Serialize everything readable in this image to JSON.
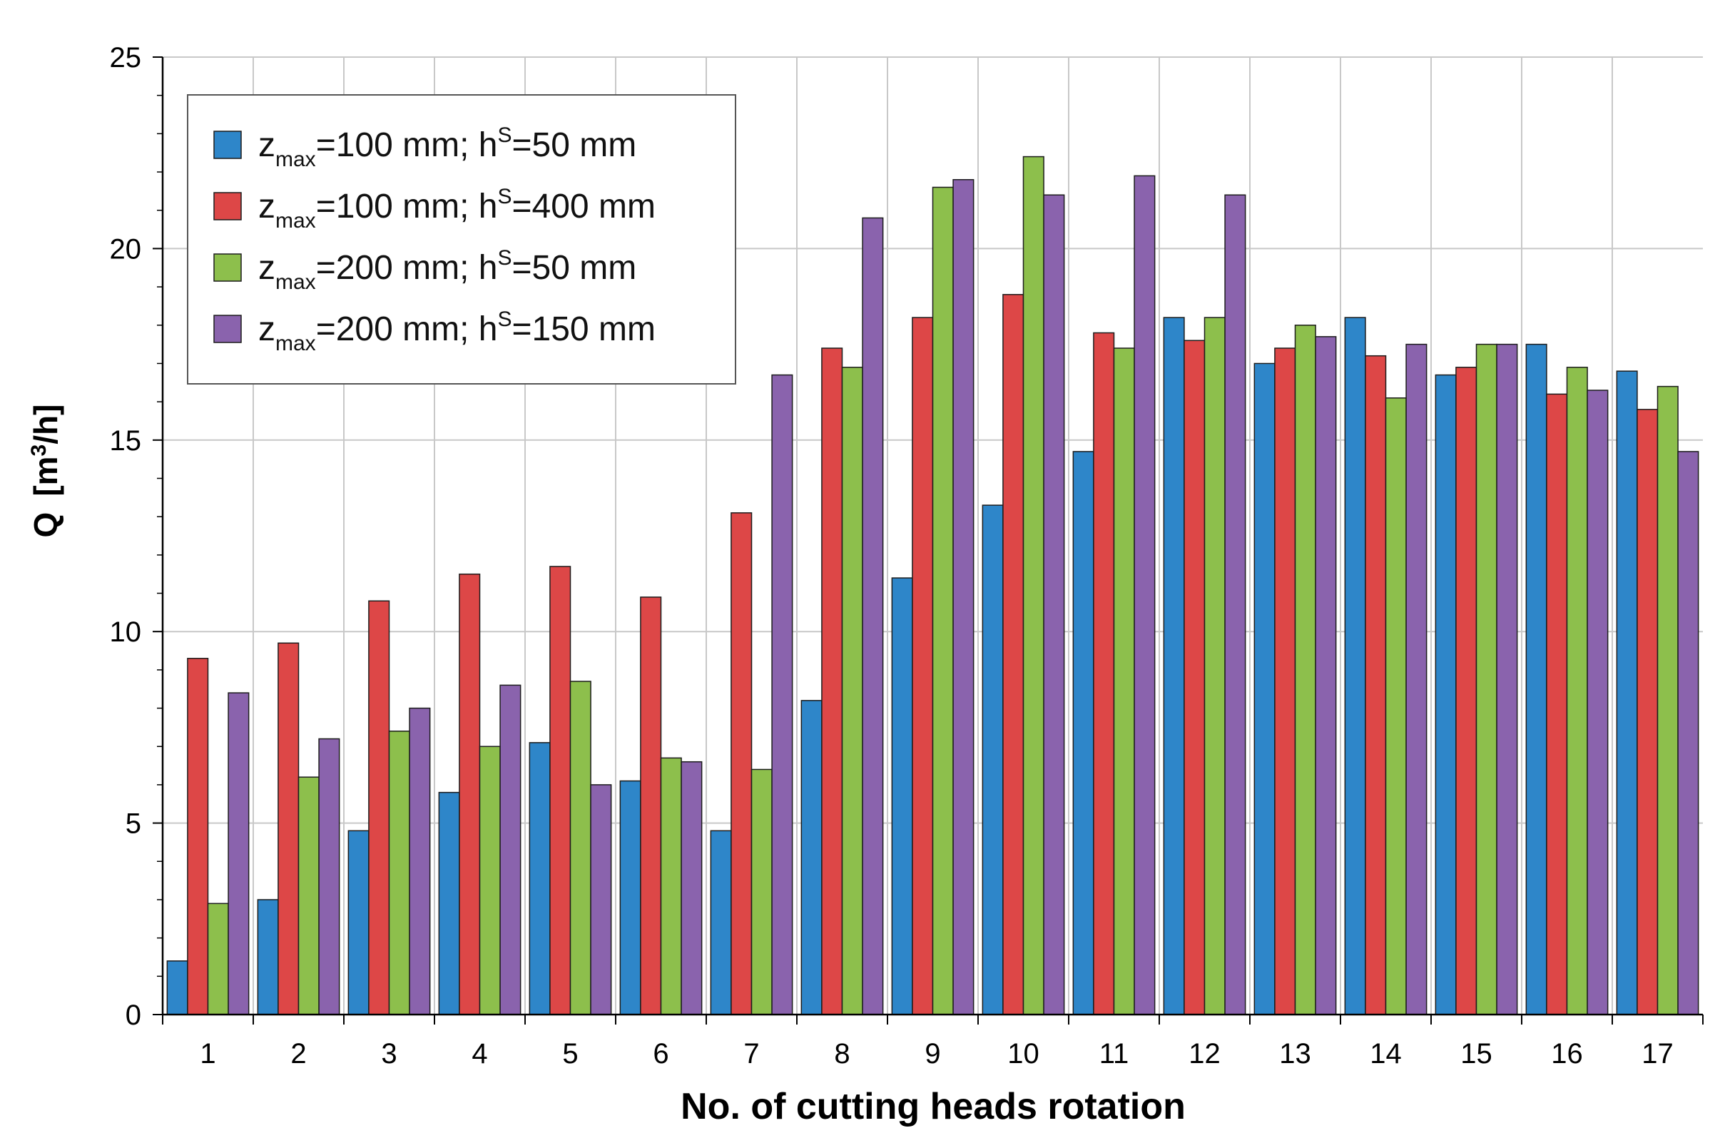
{
  "chart_data": {
    "type": "bar",
    "title": "",
    "xlabel": "No. of cutting heads rotation",
    "ylabel": "Q  [m³/h]",
    "ylabel_parts": {
      "symbol": "Q",
      "open": "[m",
      "sup": "3",
      "close": "/h]"
    },
    "ylim": [
      0,
      25
    ],
    "yticks": [
      "0",
      "5",
      "10",
      "15",
      "20",
      "25"
    ],
    "grid": true,
    "legend_position": "top-left",
    "categories": [
      "1",
      "2",
      "3",
      "4",
      "5",
      "6",
      "7",
      "8",
      "9",
      "10",
      "11",
      "12",
      "13",
      "14",
      "15",
      "16",
      "17"
    ],
    "series": [
      {
        "name": "zmax=100 mm; hS=50 mm",
        "label_parts": {
          "z": "z",
          "sub": "max",
          "mid": "=100 mm; h",
          "sup": "S",
          "end": "=50 mm"
        },
        "color": "#2e86c9",
        "values": [
          1.4,
          3.0,
          4.8,
          5.8,
          7.1,
          6.1,
          4.8,
          8.2,
          11.4,
          13.3,
          14.7,
          18.2,
          17.0,
          18.2,
          16.7,
          17.5,
          16.8
        ]
      },
      {
        "name": "zmax=100 mm; hS=400 mm",
        "label_parts": {
          "z": "z",
          "sub": "max",
          "mid": "=100 mm; h",
          "sup": "S",
          "end": "=400 mm"
        },
        "color": "#dd4747",
        "values": [
          9.3,
          9.7,
          10.8,
          11.5,
          11.7,
          10.9,
          13.1,
          17.4,
          18.2,
          18.8,
          17.8,
          17.6,
          17.4,
          17.2,
          16.9,
          16.2,
          15.8
        ]
      },
      {
        "name": "zmax=200 mm; hS=50 mm",
        "label_parts": {
          "z": "z",
          "sub": "max",
          "mid": "=200 mm; h",
          "sup": "S",
          "end": "=50 mm"
        },
        "color": "#8dbf4c",
        "values": [
          2.9,
          6.2,
          7.4,
          7.0,
          8.7,
          6.7,
          6.4,
          16.9,
          21.6,
          22.4,
          17.4,
          18.2,
          18.0,
          16.1,
          17.5,
          16.9,
          16.4
        ]
      },
      {
        "name": "zmax=200 mm; hS=150 mm",
        "label_parts": {
          "z": "z",
          "sub": "max",
          "mid": "=200 mm; h",
          "sup": "S",
          "end": "=150 mm"
        },
        "color": "#8a63ad",
        "values": [
          8.4,
          7.2,
          8.0,
          8.6,
          6.0,
          6.6,
          16.7,
          20.8,
          21.8,
          21.4,
          21.9,
          21.4,
          17.7,
          17.5,
          17.5,
          16.3,
          14.7
        ]
      }
    ]
  }
}
